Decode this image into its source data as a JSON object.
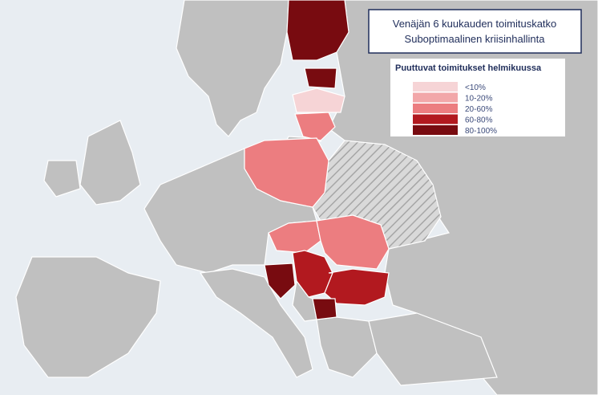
{
  "title": [
    "Venäjän 6 kuukauden toimituskatko",
    "Suboptimaalinen kriisinhallinta"
  ],
  "legend": {
    "title": "Puuttuvat toimitukset helmikuussa",
    "items": [
      {
        "label": "<10%",
        "color": "#f6d4d6"
      },
      {
        "label": "10-20%",
        "color": "#f2a7a9"
      },
      {
        "label": "20-60%",
        "color": "#ec7d80"
      },
      {
        "label": "60-80%",
        "color": "#b2191f"
      },
      {
        "label": "80-100%",
        "color": "#780b10"
      }
    ]
  }
}
